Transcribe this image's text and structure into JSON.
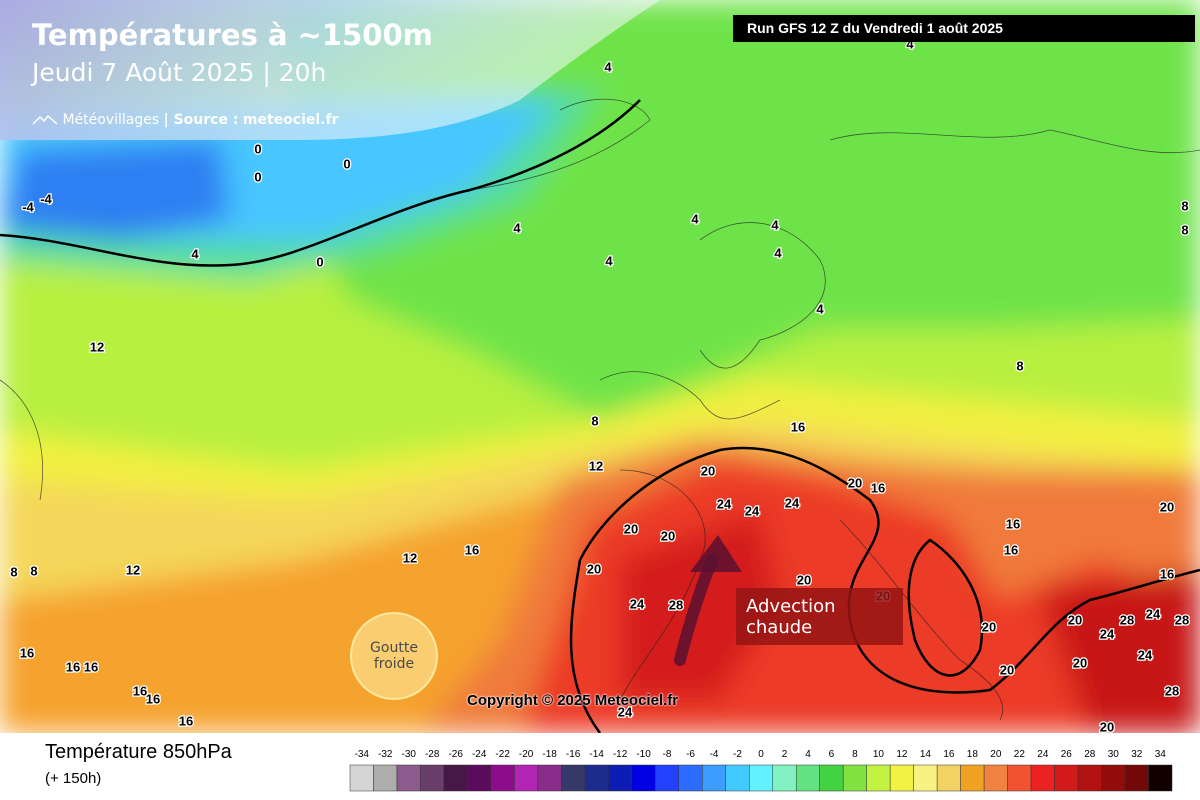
{
  "header": {
    "title": "Températures à ~1500m",
    "subtitle": "Jeudi 7 Août 2025 | 20h",
    "brand": "Météovillages",
    "source_label": "| Source :",
    "source": "meteociel.fr"
  },
  "run_banner": "Run GFS 12 Z du Vendredi 1 août 2025",
  "copyright": "Copyright © 2025 Meteociel.fr",
  "annotations": {
    "advection": "Advection chaude",
    "cold_drop": "Goutte froide"
  },
  "map_labels": [
    -4,
    -4,
    0,
    0,
    0,
    0,
    4,
    4,
    4,
    4,
    4,
    4,
    4,
    4,
    4,
    8,
    8,
    8,
    12,
    8,
    16,
    12,
    20,
    20,
    16,
    24,
    24,
    24,
    20,
    20,
    16,
    20,
    16,
    16,
    12,
    8,
    8,
    12,
    20,
    20,
    16,
    24,
    28,
    20,
    20,
    20,
    24,
    28,
    24,
    28,
    16,
    16,
    16,
    20,
    24,
    20,
    16,
    16,
    16,
    28,
    24,
    20
  ],
  "legend": {
    "title": "Température 850hPa",
    "lead_time": "(+ 150h)",
    "scale": [
      {
        "value": -34,
        "color": "#d4d4d4"
      },
      {
        "value": -32,
        "color": "#adadad"
      },
      {
        "value": -30,
        "color": "#8c5a8c"
      },
      {
        "value": -28,
        "color": "#6a3e6a"
      },
      {
        "value": -26,
        "color": "#471747"
      },
      {
        "value": -24,
        "color": "#5c0b5c"
      },
      {
        "value": -22,
        "color": "#8c0c8c"
      },
      {
        "value": -20,
        "color": "#b324b3"
      },
      {
        "value": -18,
        "color": "#8a2c8a"
      },
      {
        "value": -16,
        "color": "#36386a"
      },
      {
        "value": -14,
        "color": "#1c2c8c"
      },
      {
        "value": -12,
        "color": "#0c1cb4"
      },
      {
        "value": -10,
        "color": "#0000e2"
      },
      {
        "value": -8,
        "color": "#2342ff"
      },
      {
        "value": -6,
        "color": "#2c6cff"
      },
      {
        "value": -4,
        "color": "#3c9cff"
      },
      {
        "value": -2,
        "color": "#42caff"
      },
      {
        "value": 0,
        "color": "#62f2ff"
      },
      {
        "value": 2,
        "color": "#82f2c2"
      },
      {
        "value": 4,
        "color": "#62e282"
      },
      {
        "value": 6,
        "color": "#42d242"
      },
      {
        "value": 8,
        "color": "#82e242"
      },
      {
        "value": 10,
        "color": "#c2f242"
      },
      {
        "value": 12,
        "color": "#f2f242"
      },
      {
        "value": 14,
        "color": "#f8f282"
      },
      {
        "value": 16,
        "color": "#f2d262"
      },
      {
        "value": 18,
        "color": "#f2a222"
      },
      {
        "value": 20,
        "color": "#f28242"
      },
      {
        "value": 22,
        "color": "#f25232"
      },
      {
        "value": 24,
        "color": "#ea2222"
      },
      {
        "value": 26,
        "color": "#d21a1a"
      },
      {
        "value": 28,
        "color": "#b21212"
      },
      {
        "value": 30,
        "color": "#920c0c"
      },
      {
        "value": 32,
        "color": "#720808"
      },
      {
        "value": 34,
        "color": "#120000"
      }
    ]
  }
}
